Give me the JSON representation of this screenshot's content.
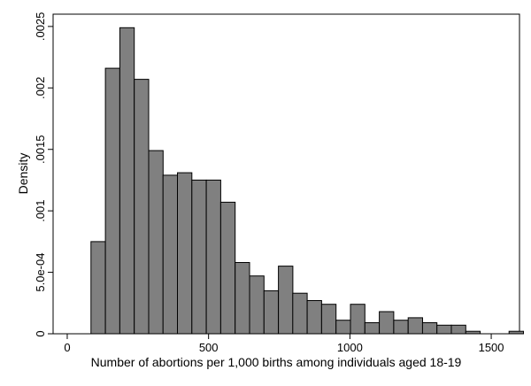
{
  "chart_data": {
    "type": "bar",
    "subtype": "histogram",
    "xlabel": "Number of abortions per 1,000 births among individuals aged 18-19",
    "ylabel": "Density",
    "xlim": [
      -50,
      1600
    ],
    "ylim": [
      0,
      0.0026
    ],
    "x_ticks": [
      0,
      500,
      1000,
      1500
    ],
    "x_tick_labels": [
      "0",
      "500",
      "1000",
      "1500"
    ],
    "y_ticks": [
      0,
      0.0005,
      0.001,
      0.0015,
      0.002,
      0.0025
    ],
    "y_tick_labels": [
      "0",
      "5.0e-04",
      ".001",
      ".0015",
      ".002",
      ".0025"
    ],
    "bin_width": 51,
    "bin_starts": [
      84,
      135,
      186,
      237,
      288,
      339,
      390,
      441,
      492,
      543,
      594,
      645,
      696,
      747,
      798,
      849,
      900,
      951,
      1002,
      1053,
      1104,
      1155,
      1206,
      1257,
      1308,
      1359,
      1410,
      1461,
      1512,
      1563
    ],
    "values": [
      0.00075,
      0.00216,
      0.00249,
      0.00207,
      0.00149,
      0.00129,
      0.00131,
      0.00125,
      0.00125,
      0.00107,
      0.00058,
      0.00047,
      0.00035,
      0.00055,
      0.00033,
      0.00027,
      0.00024,
      0.00011,
      0.00024,
      9e-05,
      0.00018,
      0.00011,
      0.00013,
      9e-05,
      7e-05,
      7e-05,
      2e-05,
      0.0,
      0.0,
      2e-05
    ],
    "grid": false,
    "legend": "none",
    "colors": {
      "bar_fill": "#808080",
      "bar_stroke": "#000000",
      "axis": "#000000",
      "background": "#ffffff"
    }
  }
}
